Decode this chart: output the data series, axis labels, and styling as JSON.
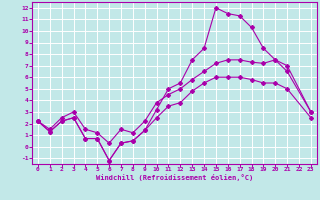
{
  "title": "",
  "xlabel": "Windchill (Refroidissement éolien,°C)",
  "xlim": [
    -0.5,
    23.5
  ],
  "ylim": [
    -1.5,
    12.5
  ],
  "xticks": [
    0,
    1,
    2,
    3,
    4,
    5,
    6,
    7,
    8,
    9,
    10,
    11,
    12,
    13,
    14,
    15,
    16,
    17,
    18,
    19,
    20,
    21,
    22,
    23
  ],
  "yticks": [
    -1,
    0,
    1,
    2,
    3,
    4,
    5,
    6,
    7,
    8,
    9,
    10,
    11,
    12
  ],
  "background_color": "#c2e8e8",
  "grid_color": "#ffffff",
  "line_color": "#aa00aa",
  "line1_x": [
    0,
    1,
    2,
    3,
    4,
    5,
    6,
    7,
    8,
    9,
    10,
    11,
    12,
    13,
    14,
    15,
    16,
    17,
    18,
    19,
    20,
    21,
    23
  ],
  "line1_y": [
    2.2,
    1.3,
    2.2,
    2.5,
    0.7,
    0.7,
    -1.2,
    0.3,
    0.5,
    1.4,
    3.2,
    5.0,
    5.5,
    7.5,
    8.5,
    12.0,
    11.5,
    11.3,
    10.3,
    8.5,
    7.5,
    6.5,
    3.0
  ],
  "line2_x": [
    0,
    1,
    2,
    3,
    4,
    5,
    6,
    7,
    8,
    9,
    10,
    11,
    12,
    13,
    14,
    15,
    16,
    17,
    18,
    19,
    20,
    21,
    23
  ],
  "line2_y": [
    2.2,
    1.5,
    2.5,
    3.0,
    1.5,
    1.2,
    0.3,
    1.5,
    1.2,
    2.2,
    3.8,
    4.5,
    5.0,
    5.8,
    6.5,
    7.2,
    7.5,
    7.5,
    7.3,
    7.2,
    7.5,
    7.0,
    3.0
  ],
  "line3_x": [
    0,
    1,
    2,
    3,
    4,
    5,
    6,
    7,
    8,
    9,
    10,
    11,
    12,
    13,
    14,
    15,
    16,
    17,
    18,
    19,
    20,
    21,
    23
  ],
  "line3_y": [
    2.2,
    1.3,
    2.2,
    2.5,
    0.7,
    0.7,
    -1.2,
    0.3,
    0.5,
    1.4,
    2.5,
    3.5,
    3.8,
    4.8,
    5.5,
    6.0,
    6.0,
    6.0,
    5.8,
    5.5,
    5.5,
    5.0,
    2.5
  ]
}
